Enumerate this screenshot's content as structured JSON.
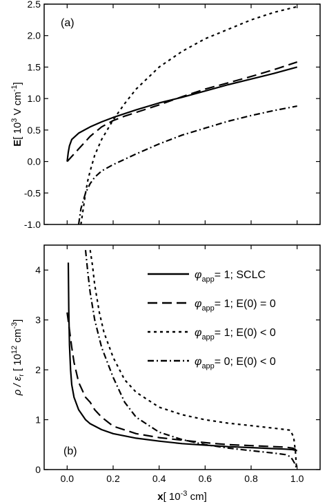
{
  "figure": {
    "shared_xlabel_main": "x",
    "shared_xlabel_unit": "[ 10",
    "shared_xlabel_exp": "-3",
    "shared_xlabel_tail": " cm]"
  },
  "chart_data": [
    {
      "type": "line",
      "panel_label": "(a)",
      "ylabel_main": "E",
      "ylabel_unit": "[ 10",
      "ylabel_exp": "3",
      "ylabel_mid": " V cm",
      "ylabel_exp2": "-1",
      "ylabel_tail": "]",
      "xlim": [
        -0.1,
        1.1
      ],
      "ylim": [
        -1.0,
        2.5
      ],
      "yticks": [
        -1.0,
        -0.5,
        0.0,
        0.5,
        1.0,
        1.5,
        2.0,
        2.5
      ],
      "ytick_labels": [
        "-1.0",
        "-0.5",
        "0.0",
        "0.5",
        "1.0",
        "1.5",
        "2.0",
        "2.5"
      ],
      "xticks": [
        0.0,
        0.2,
        0.4,
        0.6,
        0.8,
        1.0
      ],
      "grid": false,
      "series": [
        {
          "key": "s1",
          "style": "solid",
          "x": [
            0,
            0.005,
            0.01,
            0.02,
            0.05,
            0.1,
            0.15,
            0.2,
            0.3,
            0.4,
            0.5,
            0.6,
            0.7,
            0.8,
            0.9,
            1.0
          ],
          "y": [
            0.0,
            0.15,
            0.25,
            0.35,
            0.45,
            0.55,
            0.63,
            0.7,
            0.82,
            0.93,
            1.02,
            1.12,
            1.22,
            1.31,
            1.4,
            1.5
          ]
        },
        {
          "key": "s2",
          "style": "dashed",
          "x": [
            0,
            0.02,
            0.05,
            0.1,
            0.15,
            0.2,
            0.25,
            0.3,
            0.4,
            0.5,
            0.6,
            0.7,
            0.8,
            0.9,
            1.0
          ],
          "y": [
            0.0,
            0.08,
            0.2,
            0.4,
            0.55,
            0.65,
            0.72,
            0.78,
            0.9,
            1.03,
            1.15,
            1.25,
            1.35,
            1.46,
            1.58
          ]
        },
        {
          "key": "s3",
          "style": "dotted",
          "x": [
            0.06,
            0.07,
            0.08,
            0.09,
            0.1,
            0.12,
            0.15,
            0.2,
            0.25,
            0.3,
            0.4,
            0.5,
            0.6,
            0.7,
            0.8,
            0.9,
            1.0
          ],
          "y": [
            -1.0,
            -0.75,
            -0.5,
            -0.3,
            -0.15,
            0.1,
            0.35,
            0.66,
            0.92,
            1.15,
            1.5,
            1.75,
            1.95,
            2.1,
            2.25,
            2.37,
            2.46
          ]
        },
        {
          "key": "s4",
          "style": "dashdot",
          "x": [
            0.05,
            0.06,
            0.08,
            0.1,
            0.12,
            0.15,
            0.2,
            0.3,
            0.4,
            0.5,
            0.6,
            0.7,
            0.8,
            0.9,
            1.0
          ],
          "y": [
            -1.0,
            -0.75,
            -0.5,
            -0.35,
            -0.25,
            -0.15,
            -0.05,
            0.12,
            0.28,
            0.42,
            0.53,
            0.64,
            0.73,
            0.81,
            0.88
          ]
        }
      ]
    },
    {
      "type": "line",
      "panel_label": "(b)",
      "ylabel_main": "ρ / ε",
      "ylabel_sub": "r",
      "ylabel_unit": " [ 10",
      "ylabel_exp": "12",
      "ylabel_mid": " cm",
      "ylabel_exp2": "-3",
      "ylabel_tail": "]",
      "xlim": [
        -0.1,
        1.1
      ],
      "ylim": [
        0,
        4.5
      ],
      "yticks": [
        0,
        1,
        2,
        3,
        4
      ],
      "ytick_labels": [
        "0",
        "1",
        "2",
        "3",
        "4"
      ],
      "xticks": [
        0.0,
        0.2,
        0.4,
        0.6,
        0.8,
        1.0
      ],
      "xtick_labels": [
        "0.0",
        "0.2",
        "0.4",
        "0.6",
        "0.8",
        "1.0"
      ],
      "grid": false,
      "legend_position": "top-right",
      "legend": [
        {
          "key": "s1",
          "style": "solid",
          "label_pre": "φ",
          "label_sub": "app",
          "label_post": "= 1; SCLC"
        },
        {
          "key": "s2",
          "style": "dashed",
          "label_pre": "φ",
          "label_sub": "app",
          "label_post": "= 1; E(0) = 0"
        },
        {
          "key": "s3",
          "style": "dotted",
          "label_pre": "φ",
          "label_sub": "app",
          "label_post": "= 1; E(0) < 0"
        },
        {
          "key": "s4",
          "style": "dashdot",
          "label_pre": "φ",
          "label_sub": "app",
          "label_post": "= 0; E(0) < 0"
        }
      ],
      "series": [
        {
          "key": "s1",
          "style": "solid",
          "x": [
            0.005,
            0.007,
            0.01,
            0.015,
            0.02,
            0.03,
            0.05,
            0.08,
            0.1,
            0.15,
            0.2,
            0.3,
            0.4,
            0.5,
            0.6,
            0.7,
            0.8,
            0.9,
            0.95,
            0.98,
            1.0
          ],
          "y": [
            4.15,
            3.2,
            2.5,
            2.0,
            1.7,
            1.45,
            1.2,
            1.0,
            0.92,
            0.8,
            0.72,
            0.63,
            0.57,
            0.52,
            0.49,
            0.46,
            0.44,
            0.42,
            0.41,
            0.4,
            0.38
          ]
        },
        {
          "key": "s2",
          "style": "dashed",
          "x": [
            0,
            0.01,
            0.02,
            0.03,
            0.05,
            0.08,
            0.1,
            0.12,
            0.15,
            0.2,
            0.3,
            0.4,
            0.5,
            0.6,
            0.7,
            0.8,
            0.9,
            0.95,
            0.98,
            0.995
          ],
          "y": [
            3.15,
            2.8,
            2.45,
            2.15,
            1.75,
            1.45,
            1.35,
            1.2,
            1.05,
            0.87,
            0.72,
            0.64,
            0.59,
            0.54,
            0.5,
            0.48,
            0.46,
            0.45,
            0.43,
            0.4
          ]
        },
        {
          "key": "s3",
          "style": "dotted",
          "x": [
            0.1,
            0.11,
            0.12,
            0.14,
            0.16,
            0.2,
            0.25,
            0.3,
            0.4,
            0.5,
            0.6,
            0.7,
            0.8,
            0.9,
            0.97,
            0.985,
            0.993,
            0.997
          ],
          "y": [
            4.4,
            4.1,
            3.7,
            3.15,
            2.75,
            2.25,
            1.8,
            1.55,
            1.25,
            1.1,
            1.0,
            0.93,
            0.88,
            0.83,
            0.79,
            0.65,
            0.35,
            0.05
          ]
        },
        {
          "key": "s4",
          "style": "dashdot",
          "x": [
            0.08,
            0.09,
            0.1,
            0.12,
            0.15,
            0.2,
            0.25,
            0.3,
            0.4,
            0.5,
            0.6,
            0.7,
            0.8,
            0.9,
            0.95,
            0.97,
            0.98,
            0.99,
            0.995,
            0.998
          ],
          "y": [
            4.4,
            3.95,
            3.55,
            3.0,
            2.45,
            1.85,
            1.35,
            1.05,
            0.75,
            0.6,
            0.5,
            0.43,
            0.38,
            0.33,
            0.3,
            0.26,
            0.2,
            0.12,
            0.06,
            0.0
          ]
        }
      ]
    }
  ]
}
